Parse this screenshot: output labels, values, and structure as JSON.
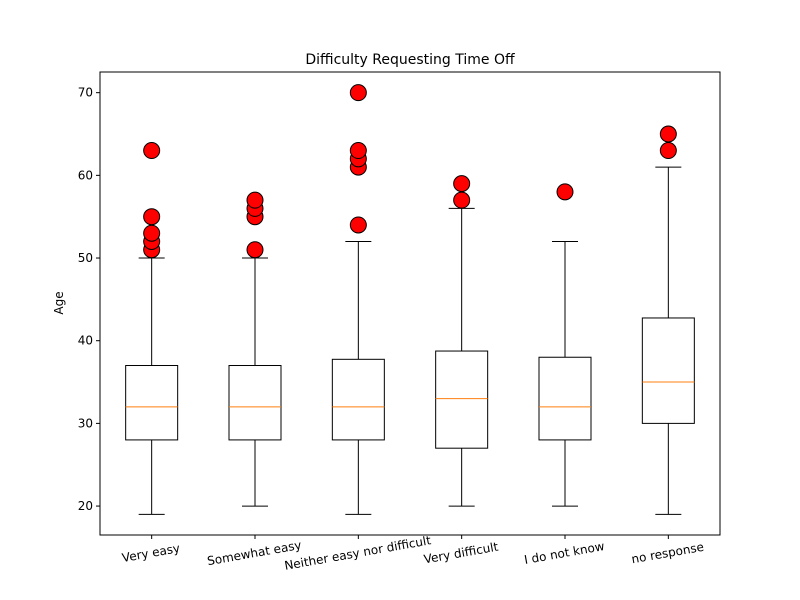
{
  "chart_data": {
    "type": "boxplot",
    "title": "Difficulty Requesting Time Off",
    "xlabel": "",
    "ylabel": "Age",
    "ylim": [
      16.5,
      72.5
    ],
    "yticks": [
      20,
      30,
      40,
      50,
      60,
      70
    ],
    "grid": false,
    "colors": {
      "median": "#ff7f0e",
      "outlier_fill": "#ff0000",
      "outlier_edge": "#000000",
      "box_edge": "#000000"
    },
    "categories": [
      "Very easy",
      "Somewhat easy",
      "Neither easy nor difficult",
      "Very difficult",
      "I do not know",
      "no response"
    ],
    "boxes": [
      {
        "whisker_low": 19,
        "q1": 28,
        "median": 32,
        "q3": 37,
        "whisker_high": 50,
        "outliers": [
          51,
          52,
          53,
          55,
          63
        ]
      },
      {
        "whisker_low": 20,
        "q1": 28,
        "median": 32,
        "q3": 37,
        "whisker_high": 50,
        "outliers": [
          51,
          55,
          56,
          57
        ]
      },
      {
        "whisker_low": 19,
        "q1": 28,
        "median": 32,
        "q3": 37.75,
        "whisker_high": 52,
        "outliers": [
          54,
          61,
          62,
          63,
          70
        ]
      },
      {
        "whisker_low": 20,
        "q1": 27,
        "median": 33,
        "q3": 38.75,
        "whisker_high": 56,
        "outliers": [
          57,
          59
        ]
      },
      {
        "whisker_low": 20,
        "q1": 28,
        "median": 32,
        "q3": 38,
        "whisker_high": 52,
        "outliers": [
          58
        ]
      },
      {
        "whisker_low": 19,
        "q1": 30,
        "median": 35,
        "q3": 42.75,
        "whisker_high": 61,
        "outliers": [
          63,
          65
        ]
      }
    ]
  }
}
